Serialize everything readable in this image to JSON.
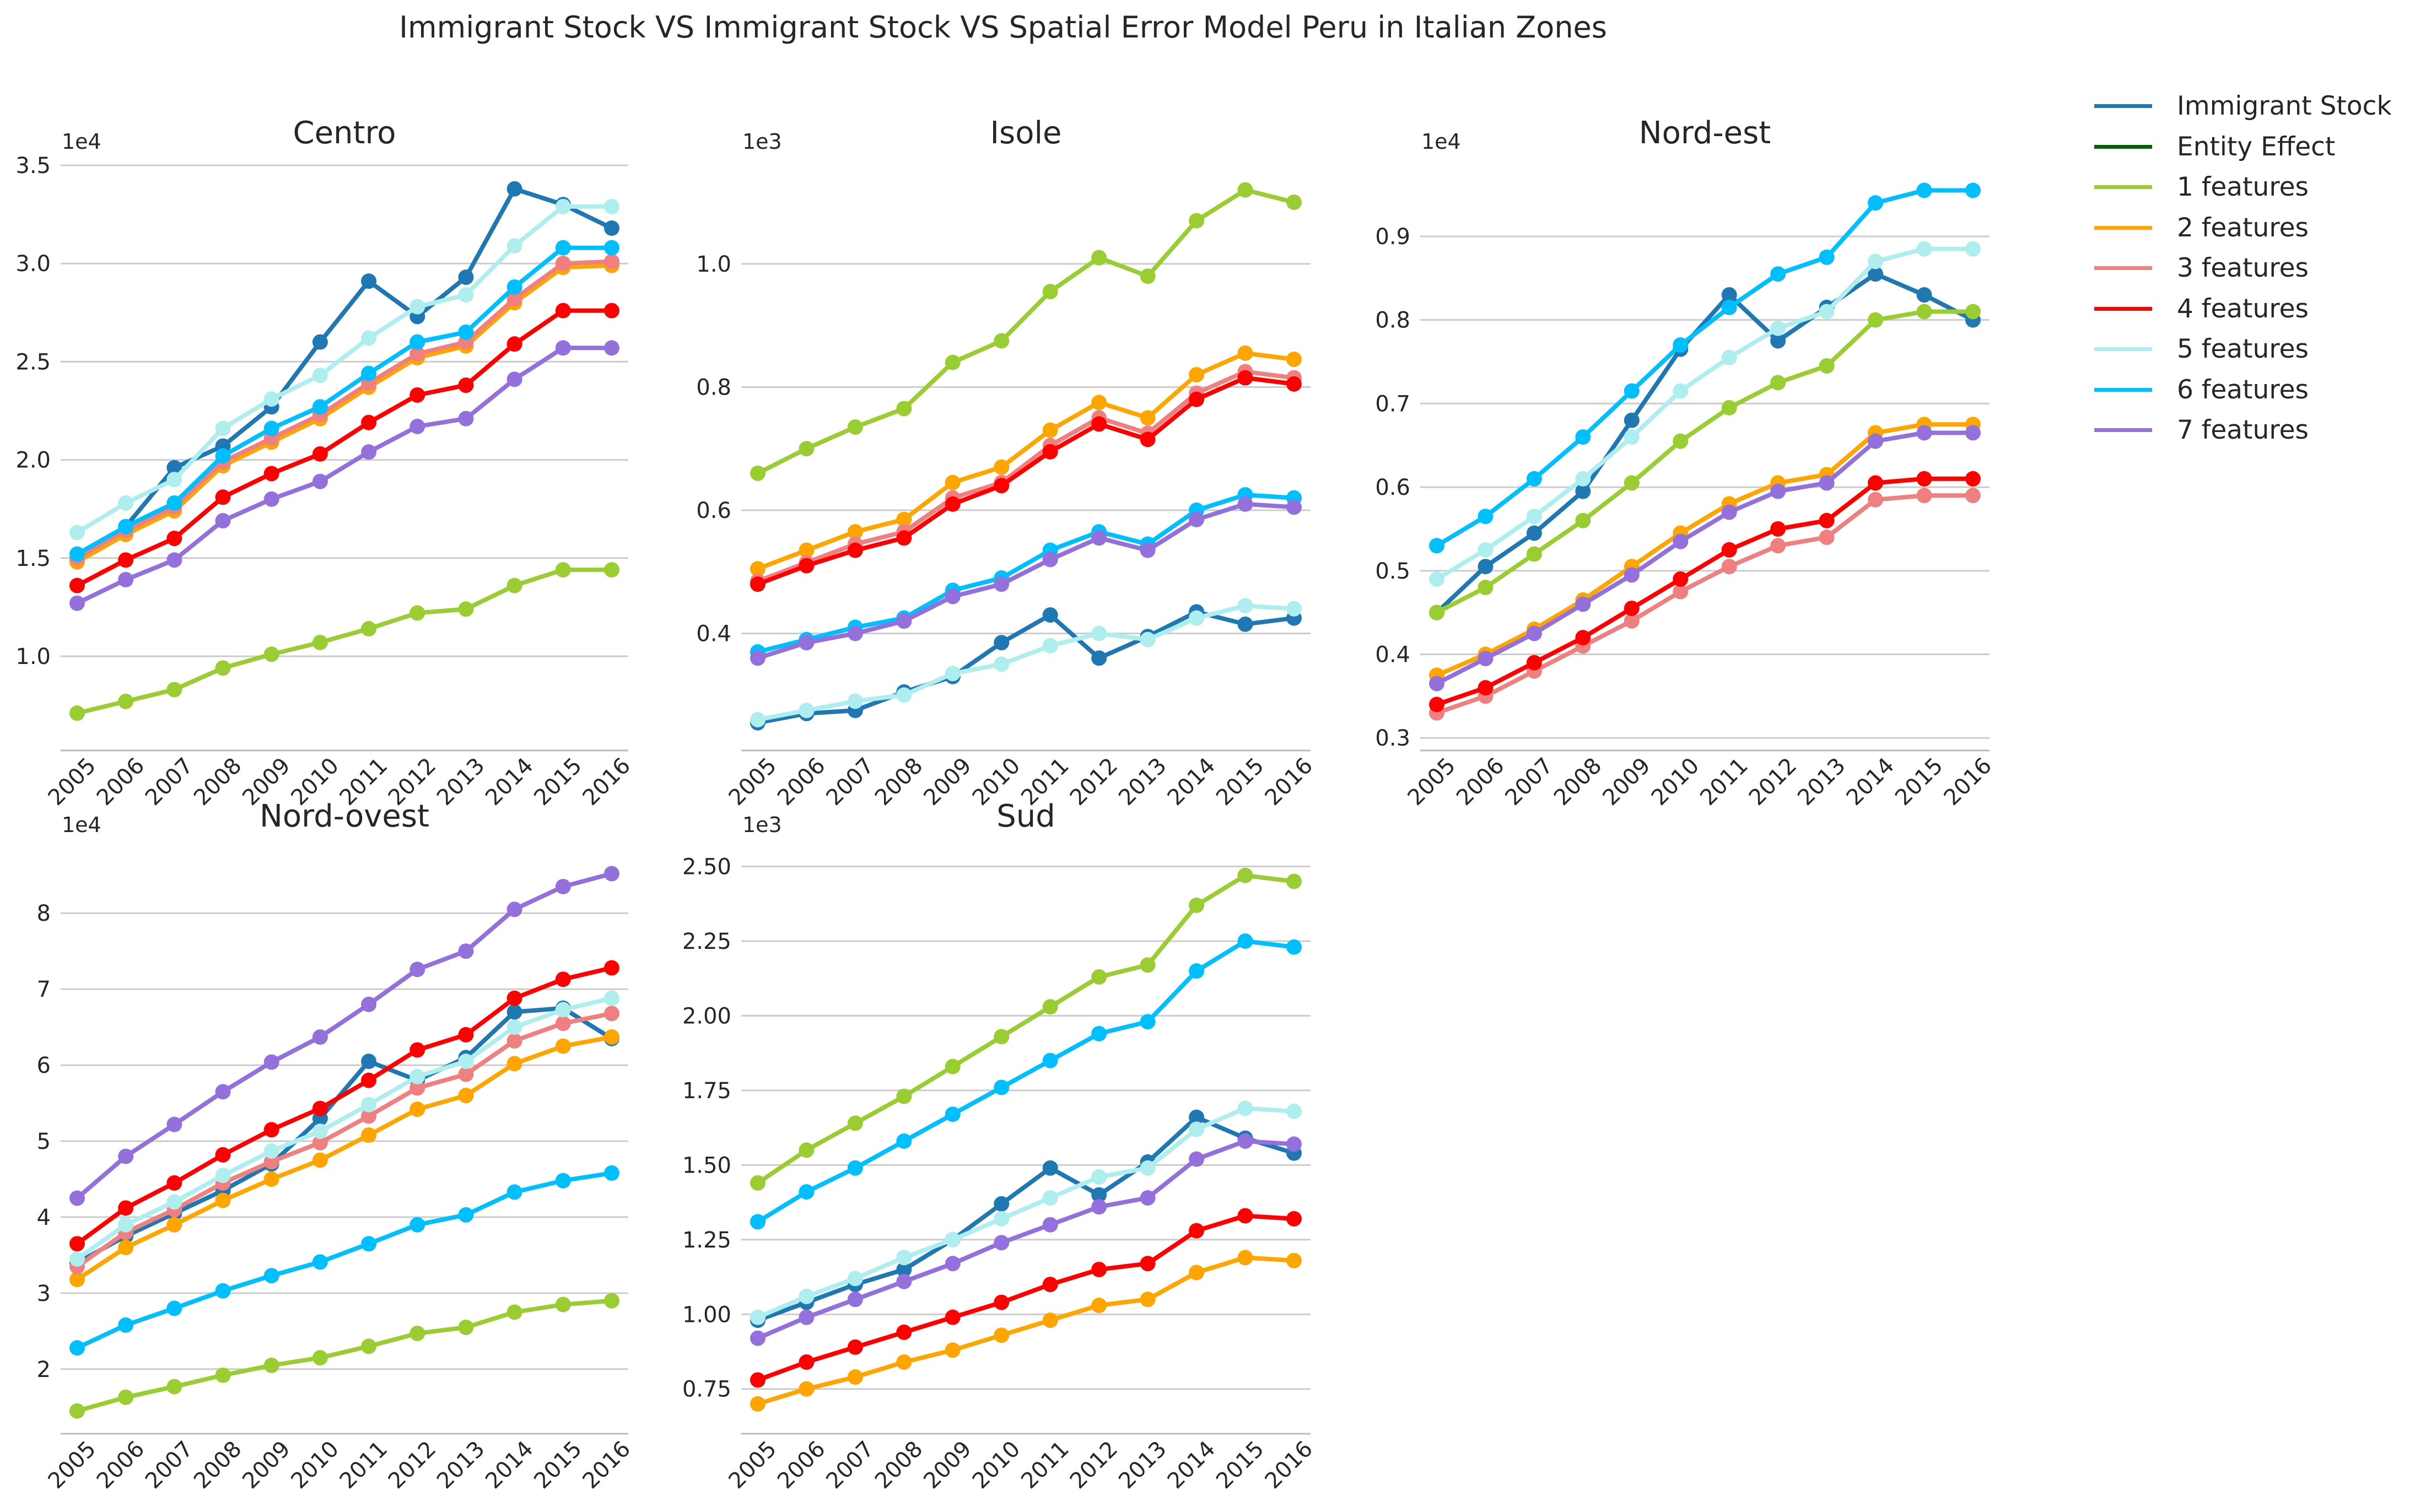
{
  "figure": {
    "title": "Immigrant Stock VS Immigrant Stock VS Spatial Error Model Peru in Italian Zones"
  },
  "legend": [
    {
      "name": "Immigrant Stock",
      "color": "#1f77b4"
    },
    {
      "name": "Entity Effect",
      "color": "#006400"
    },
    {
      "name": "1 features",
      "color": "#9acd32"
    },
    {
      "name": "2 features",
      "color": "#ffa500"
    },
    {
      "name": "3 features",
      "color": "#f08080"
    },
    {
      "name": "4 features",
      "color": "#ff0000"
    },
    {
      "name": "5 features",
      "color": "#afeeee"
    },
    {
      "name": "6 features",
      "color": "#00bfff"
    },
    {
      "name": "7 features",
      "color": "#9370db"
    }
  ],
  "chart_data": [
    {
      "type": "line",
      "title": "Centro",
      "exponent": "1e4",
      "x": [
        "2005",
        "2006",
        "2007",
        "2008",
        "2009",
        "2010",
        "2011",
        "2012",
        "2013",
        "2014",
        "2015",
        "2016"
      ],
      "ylim": [
        0.52,
        3.5
      ],
      "yticks": [
        1.0,
        1.5,
        2.0,
        2.5,
        3.0,
        3.5
      ],
      "ytick_labels": [
        "1.0",
        "1.5",
        "2.0",
        "2.5",
        "3.0",
        "3.5"
      ],
      "series": [
        {
          "name": "Immigrant Stock",
          "color": "#1f77b4",
          "values": [
            1.49,
            1.66,
            1.96,
            2.07,
            2.27,
            2.6,
            2.91,
            2.73,
            2.93,
            3.38,
            3.3,
            3.18
          ]
        },
        {
          "name": "1 features",
          "color": "#9acd32",
          "values": [
            0.71,
            0.77,
            0.83,
            0.94,
            1.01,
            1.07,
            1.14,
            1.22,
            1.24,
            1.36,
            1.44,
            1.44
          ]
        },
        {
          "name": "2 features",
          "color": "#ffa500",
          "values": [
            1.48,
            1.62,
            1.74,
            1.97,
            2.09,
            2.21,
            2.37,
            2.52,
            2.58,
            2.8,
            2.98,
            2.99
          ]
        },
        {
          "name": "3 features",
          "color": "#f08080",
          "values": [
            1.5,
            1.64,
            1.76,
            1.99,
            2.11,
            2.23,
            2.39,
            2.54,
            2.6,
            2.82,
            3.0,
            3.01
          ]
        },
        {
          "name": "4 features",
          "color": "#ff0000",
          "values": [
            1.36,
            1.49,
            1.6,
            1.81,
            1.93,
            2.03,
            2.19,
            2.33,
            2.38,
            2.59,
            2.76,
            2.76
          ]
        },
        {
          "name": "5 features",
          "color": "#afeeee",
          "values": [
            1.63,
            1.78,
            1.9,
            2.16,
            2.31,
            2.43,
            2.62,
            2.78,
            2.84,
            3.09,
            3.29,
            3.29
          ]
        },
        {
          "name": "6 features",
          "color": "#00bfff",
          "values": [
            1.52,
            1.66,
            1.78,
            2.02,
            2.16,
            2.27,
            2.44,
            2.6,
            2.65,
            2.88,
            3.08,
            3.08
          ]
        },
        {
          "name": "7 features",
          "color": "#9370db",
          "values": [
            1.27,
            1.39,
            1.49,
            1.69,
            1.8,
            1.89,
            2.04,
            2.17,
            2.21,
            2.41,
            2.57,
            2.57
          ]
        }
      ]
    },
    {
      "type": "line",
      "title": "Isole",
      "exponent": "1e3",
      "x": [
        "2005",
        "2006",
        "2007",
        "2008",
        "2009",
        "2010",
        "2011",
        "2012",
        "2013",
        "2014",
        "2015",
        "2016"
      ],
      "ylim": [
        0.21,
        1.16
      ],
      "yticks": [
        0.4,
        0.6,
        0.8,
        1.0
      ],
      "ytick_labels": [
        "0.4",
        "0.6",
        "0.8",
        "1.0"
      ],
      "series": [
        {
          "name": "Immigrant Stock",
          "color": "#1f77b4",
          "values": [
            0.255,
            0.27,
            0.275,
            0.305,
            0.33,
            0.385,
            0.43,
            0.36,
            0.395,
            0.435,
            0.415,
            0.425
          ]
        },
        {
          "name": "1 features",
          "color": "#9acd32",
          "values": [
            0.66,
            0.7,
            0.735,
            0.765,
            0.84,
            0.875,
            0.955,
            1.01,
            0.98,
            1.07,
            1.12,
            1.1
          ]
        },
        {
          "name": "2 features",
          "color": "#ffa500",
          "values": [
            0.505,
            0.535,
            0.565,
            0.585,
            0.645,
            0.67,
            0.73,
            0.775,
            0.75,
            0.82,
            0.855,
            0.845
          ]
        },
        {
          "name": "3 features",
          "color": "#f08080",
          "values": [
            0.485,
            0.515,
            0.545,
            0.565,
            0.62,
            0.645,
            0.705,
            0.75,
            0.725,
            0.79,
            0.825,
            0.815
          ]
        },
        {
          "name": "4 features",
          "color": "#ff0000",
          "values": [
            0.48,
            0.51,
            0.535,
            0.555,
            0.61,
            0.64,
            0.695,
            0.74,
            0.715,
            0.78,
            0.815,
            0.805
          ]
        },
        {
          "name": "5 features",
          "color": "#afeeee",
          "values": [
            0.26,
            0.275,
            0.29,
            0.3,
            0.335,
            0.35,
            0.38,
            0.4,
            0.39,
            0.425,
            0.445,
            0.44
          ]
        },
        {
          "name": "6 features",
          "color": "#00bfff",
          "values": [
            0.37,
            0.39,
            0.41,
            0.425,
            0.47,
            0.49,
            0.535,
            0.565,
            0.545,
            0.6,
            0.625,
            0.62
          ]
        },
        {
          "name": "7 features",
          "color": "#9370db",
          "values": [
            0.36,
            0.385,
            0.4,
            0.42,
            0.46,
            0.48,
            0.52,
            0.555,
            0.535,
            0.585,
            0.61,
            0.605
          ]
        }
      ]
    },
    {
      "type": "line",
      "title": "Nord-est",
      "exponent": "1e4",
      "x": [
        "2005",
        "2006",
        "2007",
        "2008",
        "2009",
        "2010",
        "2011",
        "2012",
        "2013",
        "2014",
        "2015",
        "2016"
      ],
      "ylim": [
        0.285,
        0.985
      ],
      "yticks": [
        0.3,
        0.4,
        0.5,
        0.6,
        0.7,
        0.8,
        0.9
      ],
      "ytick_labels": [
        "0.3",
        "0.4",
        "0.5",
        "0.6",
        "0.7",
        "0.8",
        "0.9"
      ],
      "series": [
        {
          "name": "Immigrant Stock",
          "color": "#1f77b4",
          "values": [
            0.45,
            0.505,
            0.545,
            0.595,
            0.68,
            0.765,
            0.83,
            0.775,
            0.815,
            0.855,
            0.83,
            0.8
          ]
        },
        {
          "name": "1 features",
          "color": "#9acd32",
          "values": [
            0.45,
            0.48,
            0.52,
            0.56,
            0.605,
            0.655,
            0.695,
            0.725,
            0.745,
            0.8,
            0.81,
            0.81
          ]
        },
        {
          "name": "2 features",
          "color": "#ffa500",
          "values": [
            0.375,
            0.4,
            0.43,
            0.465,
            0.505,
            0.545,
            0.58,
            0.605,
            0.615,
            0.665,
            0.675,
            0.675
          ]
        },
        {
          "name": "3 features",
          "color": "#f08080",
          "values": [
            0.33,
            0.35,
            0.38,
            0.41,
            0.44,
            0.475,
            0.505,
            0.53,
            0.54,
            0.585,
            0.59,
            0.59
          ]
        },
        {
          "name": "4 features",
          "color": "#ff0000",
          "values": [
            0.34,
            0.36,
            0.39,
            0.42,
            0.455,
            0.49,
            0.525,
            0.55,
            0.56,
            0.605,
            0.61,
            0.61
          ]
        },
        {
          "name": "5 features",
          "color": "#afeeee",
          "values": [
            0.49,
            0.525,
            0.565,
            0.61,
            0.66,
            0.715,
            0.755,
            0.79,
            0.81,
            0.87,
            0.885,
            0.885
          ]
        },
        {
          "name": "6 features",
          "color": "#00bfff",
          "values": [
            0.53,
            0.565,
            0.61,
            0.66,
            0.715,
            0.77,
            0.815,
            0.855,
            0.875,
            0.94,
            0.955,
            0.955
          ]
        },
        {
          "name": "7 features",
          "color": "#9370db",
          "values": [
            0.365,
            0.395,
            0.425,
            0.46,
            0.495,
            0.535,
            0.57,
            0.595,
            0.605,
            0.655,
            0.665,
            0.665
          ]
        }
      ]
    },
    {
      "type": "line",
      "title": "Nord-ovest",
      "exponent": "1e4",
      "x": [
        "2005",
        "2006",
        "2007",
        "2008",
        "2009",
        "2010",
        "2011",
        "2012",
        "2013",
        "2014",
        "2015",
        "2016"
      ],
      "ylim": [
        1.15,
        8.85
      ],
      "yticks": [
        2,
        3,
        4,
        5,
        6,
        7,
        8
      ],
      "ytick_labels": [
        "2",
        "3",
        "4",
        "5",
        "6",
        "7",
        "8"
      ],
      "series": [
        {
          "name": "Immigrant Stock",
          "color": "#1f77b4",
          "values": [
            3.4,
            3.75,
            4.05,
            4.35,
            4.7,
            5.3,
            6.05,
            5.8,
            6.1,
            6.7,
            6.75,
            6.35
          ]
        },
        {
          "name": "1 features",
          "color": "#9acd32",
          "values": [
            1.45,
            1.63,
            1.77,
            1.92,
            2.05,
            2.15,
            2.3,
            2.47,
            2.55,
            2.75,
            2.85,
            2.9
          ]
        },
        {
          "name": "2 features",
          "color": "#ffa500",
          "values": [
            3.18,
            3.6,
            3.9,
            4.22,
            4.5,
            4.75,
            5.08,
            5.42,
            5.6,
            6.02,
            6.25,
            6.37
          ]
        },
        {
          "name": "3 features",
          "color": "#f08080",
          "values": [
            3.35,
            3.8,
            4.1,
            4.45,
            4.73,
            4.98,
            5.33,
            5.7,
            5.88,
            6.32,
            6.55,
            6.68
          ]
        },
        {
          "name": "4 features",
          "color": "#ff0000",
          "values": [
            3.65,
            4.12,
            4.45,
            4.82,
            5.15,
            5.43,
            5.8,
            6.2,
            6.4,
            6.88,
            7.13,
            7.28
          ]
        },
        {
          "name": "5 features",
          "color": "#afeeee",
          "values": [
            3.45,
            3.9,
            4.2,
            4.55,
            4.87,
            5.13,
            5.48,
            5.85,
            6.05,
            6.5,
            6.73,
            6.88
          ]
        },
        {
          "name": "6 features",
          "color": "#00bfff",
          "values": [
            2.28,
            2.58,
            2.8,
            3.03,
            3.23,
            3.41,
            3.65,
            3.9,
            4.03,
            4.33,
            4.48,
            4.58
          ]
        },
        {
          "name": "7 features",
          "color": "#9370db",
          "values": [
            4.25,
            4.8,
            5.22,
            5.65,
            6.04,
            6.37,
            6.8,
            7.26,
            7.5,
            8.05,
            8.35,
            8.52
          ]
        }
      ]
    },
    {
      "type": "line",
      "title": "Sud",
      "exponent": "1e3",
      "x": [
        "2005",
        "2006",
        "2007",
        "2008",
        "2009",
        "2010",
        "2011",
        "2012",
        "2013",
        "2014",
        "2015",
        "2016"
      ],
      "ylim": [
        0.6,
        2.56
      ],
      "yticks": [
        0.75,
        1.0,
        1.25,
        1.5,
        1.75,
        2.0,
        2.25,
        2.5
      ],
      "ytick_labels": [
        "0.75",
        "1.00",
        "1.25",
        "1.50",
        "1.75",
        "2.00",
        "2.25",
        "2.50"
      ],
      "series": [
        {
          "name": "Immigrant Stock",
          "color": "#1f77b4",
          "values": [
            0.98,
            1.04,
            1.1,
            1.15,
            1.25,
            1.37,
            1.49,
            1.4,
            1.51,
            1.66,
            1.59,
            1.54
          ]
        },
        {
          "name": "1 features",
          "color": "#9acd32",
          "values": [
            1.44,
            1.55,
            1.64,
            1.73,
            1.83,
            1.93,
            2.03,
            2.13,
            2.17,
            2.37,
            2.47,
            2.45
          ]
        },
        {
          "name": "2 features",
          "color": "#ffa500",
          "values": [
            0.7,
            0.75,
            0.79,
            0.84,
            0.88,
            0.93,
            0.98,
            1.03,
            1.05,
            1.14,
            1.19,
            1.18
          ]
        },
        {
          "name": "4 features",
          "color": "#ff0000",
          "values": [
            0.78,
            0.84,
            0.89,
            0.94,
            0.99,
            1.04,
            1.1,
            1.15,
            1.17,
            1.28,
            1.33,
            1.32
          ]
        },
        {
          "name": "5 features",
          "color": "#afeeee",
          "values": [
            0.99,
            1.06,
            1.12,
            1.19,
            1.25,
            1.32,
            1.39,
            1.46,
            1.49,
            1.62,
            1.69,
            1.68
          ]
        },
        {
          "name": "6 features",
          "color": "#00bfff",
          "values": [
            1.31,
            1.41,
            1.49,
            1.58,
            1.67,
            1.76,
            1.85,
            1.94,
            1.98,
            2.15,
            2.25,
            2.23
          ]
        },
        {
          "name": "7 features",
          "color": "#9370db",
          "values": [
            0.92,
            0.99,
            1.05,
            1.11,
            1.17,
            1.24,
            1.3,
            1.36,
            1.39,
            1.52,
            1.58,
            1.57
          ]
        }
      ]
    }
  ]
}
